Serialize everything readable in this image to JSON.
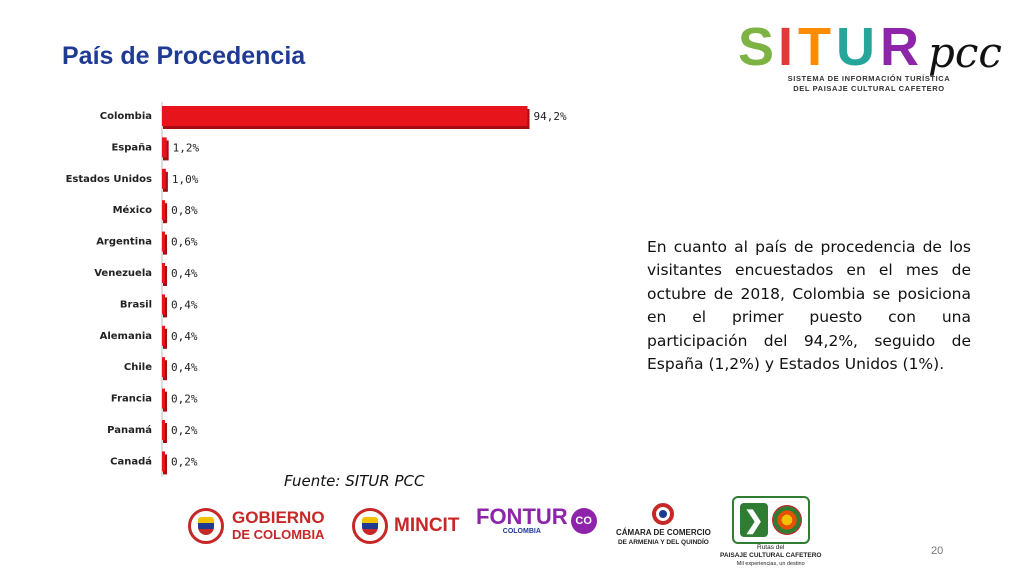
{
  "title": "País de Procedencia",
  "logo": {
    "letters": [
      "S",
      "I",
      "T",
      "U",
      "R"
    ],
    "letter_colors": [
      "#7cb342",
      "#e53935",
      "#fb8c00",
      "#26a69a",
      "#8e24aa"
    ],
    "pcc": "pcc",
    "subtitle_line1": "SISTEMA DE INFORMACIÓN TURÍSTICA",
    "subtitle_line2": "DEL PAISAJE CULTURAL CAFETERO"
  },
  "chart_data": {
    "type": "bar",
    "orientation": "horizontal",
    "categories": [
      "Colombia",
      "España",
      "Estados Unidos",
      "México",
      "Argentina",
      "Venezuela",
      "Brasil",
      "Alemania",
      "Chile",
      "Francia",
      "Panamá",
      "Canadá"
    ],
    "values": [
      94.2,
      1.2,
      1.0,
      0.8,
      0.6,
      0.4,
      0.4,
      0.4,
      0.4,
      0.2,
      0.2,
      0.2
    ],
    "value_labels": [
      "94,2%",
      "1,2%",
      "1,0%",
      "0,8%",
      "0,6%",
      "0,4%",
      "0,4%",
      "0,4%",
      "0,4%",
      "0,2%",
      "0,2%",
      "0,2%"
    ],
    "bar_color": "#e8141b",
    "bar_shadow_color": "#a50d12",
    "xlim": [
      0,
      100
    ],
    "grid": false,
    "legend": "none"
  },
  "paragraph": "En cuanto al país de procedencia de los visitantes encuestados en el mes de octubre de 2018, Colombia se posiciona en el primer puesto con una participación del 94,2%, seguido de España (1,2%) y Estados Unidos (1%).",
  "source": "Fuente: SITUR PCC",
  "footer": {
    "gobierno_line1": "GOBIERNO",
    "gobierno_line2": "DE COLOMBIA",
    "mincit": "MINCIT",
    "fontur": "FONTUR",
    "fontur_sub": "COLOMBIA",
    "co_badge": "CO",
    "camara_line1": "CÁMARA DE COMERCIO",
    "camara_line2": "DE ARMENIA Y DEL QUINDÍO",
    "rutas_line1": "Rutas del",
    "rutas_line2": "PAISAJE CULTURAL CAFETERO",
    "rutas_line3": "Mil experiencias, un destino"
  },
  "page_number": "20"
}
